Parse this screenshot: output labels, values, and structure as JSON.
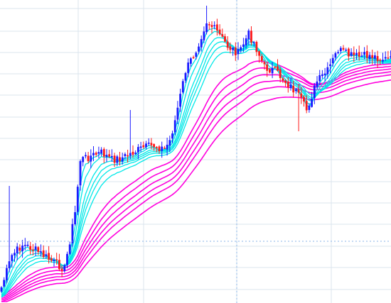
{
  "chart_data": {
    "type": "candlestick",
    "title": "",
    "grid": true,
    "crosshair": true,
    "ylim": [
      0,
      427
    ],
    "n_bars": 150,
    "bar_start": 0,
    "colors": {
      "background": "#ffffff",
      "grid": "#dbe4ee",
      "crosshair": "#8ab4e8",
      "bull": "#1a1aff",
      "bear": "#ff1a1a",
      "fast_mas": "#00e8e8",
      "slow_mas": "#ff00dd"
    },
    "price_anchors": [
      [
        0,
        405
      ],
      [
        4,
        360
      ],
      [
        8,
        345
      ],
      [
        12,
        350
      ],
      [
        16,
        360
      ],
      [
        20,
        370
      ],
      [
        24,
        378
      ],
      [
        28,
        300
      ],
      [
        30,
        225
      ],
      [
        34,
        220
      ],
      [
        38,
        215
      ],
      [
        42,
        225
      ],
      [
        46,
        222
      ],
      [
        50,
        215
      ],
      [
        54,
        208
      ],
      [
        58,
        205
      ],
      [
        62,
        210
      ],
      [
        64,
        198
      ],
      [
        66,
        170
      ],
      [
        70,
        100
      ],
      [
        74,
        70
      ],
      [
        78,
        30
      ],
      [
        82,
        45
      ],
      [
        86,
        65
      ],
      [
        90,
        75
      ],
      [
        94,
        48
      ],
      [
        96,
        60
      ],
      [
        100,
        95
      ],
      [
        104,
        100
      ],
      [
        108,
        115
      ],
      [
        112,
        130
      ],
      [
        116,
        155
      ],
      [
        120,
        115
      ],
      [
        124,
        100
      ],
      [
        128,
        70
      ],
      [
        132,
        78
      ],
      [
        136,
        80
      ],
      [
        140,
        78
      ],
      [
        144,
        82
      ],
      [
        149,
        85
      ]
    ],
    "fast_ma_periods": [
      3,
      5,
      8,
      10,
      12,
      15
    ],
    "slow_ma_periods": [
      30,
      35,
      40,
      45,
      50,
      60
    ]
  }
}
